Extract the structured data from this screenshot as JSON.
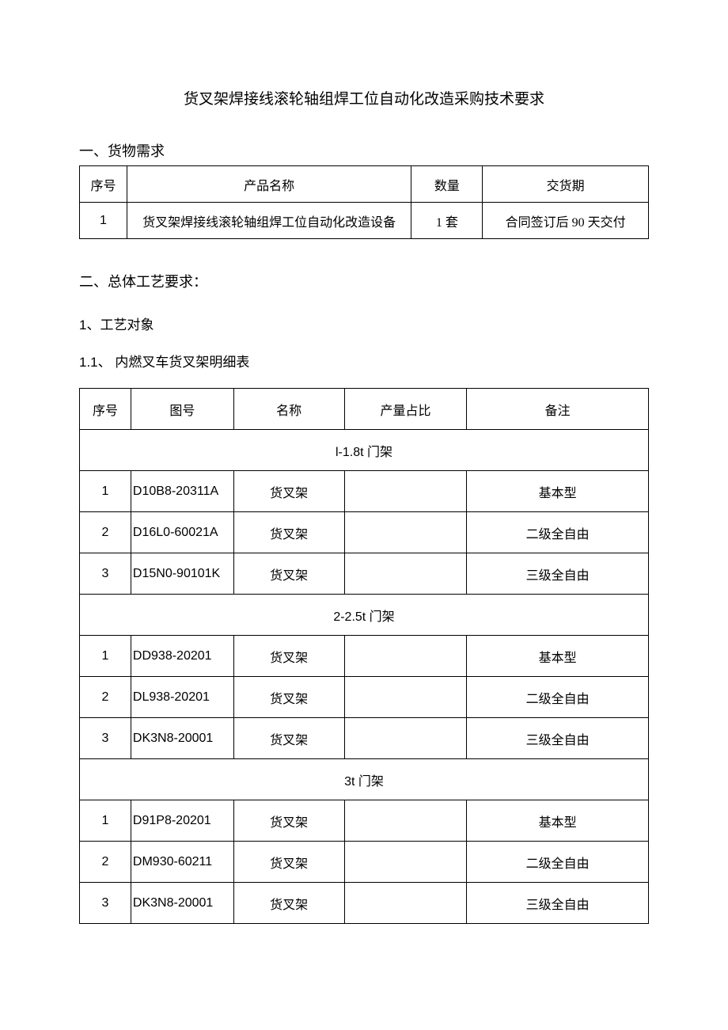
{
  "title": "货叉架焊接线滚轮轴组焊工位自动化改造采购技术要求",
  "section1": {
    "heading": "一、货物需求",
    "columns": [
      "序号",
      "产品名称",
      "数量",
      "交货期"
    ],
    "rows": [
      {
        "seq": "1",
        "name": "货叉架焊接线滚轮轴组焊工位自动化改造设备",
        "qty": "1 套",
        "delivery": "合同签订后 90 天交付"
      }
    ]
  },
  "section2": {
    "heading": "二、总体工艺要求：",
    "sub1": "1、工艺对象",
    "sub11": "1.1、 内燃叉车货叉架明细表",
    "columns": [
      "序号",
      "图号",
      "名称",
      "产量占比",
      "备注"
    ],
    "groups": [
      {
        "label": "l-1.8t 门架",
        "rows": [
          {
            "seq": "1",
            "fig": "D10B8-20311A",
            "name": "货叉架",
            "ratio": "",
            "remark": "基本型"
          },
          {
            "seq": "2",
            "fig": "D16L0-60021A",
            "name": "货叉架",
            "ratio": "",
            "remark": "二级全自由"
          },
          {
            "seq": "3",
            "fig": "D15N0-90101K",
            "name": "货叉架",
            "ratio": "",
            "remark": "三级全自由"
          }
        ]
      },
      {
        "label": "2-2.5t 门架",
        "rows": [
          {
            "seq": "1",
            "fig": "DD938-20201",
            "name": "货叉架",
            "ratio": "",
            "remark": "基本型"
          },
          {
            "seq": "2",
            "fig": "DL938-20201",
            "name": "货叉架",
            "ratio": "",
            "remark": "二级全自由"
          },
          {
            "seq": "3",
            "fig": "DK3N8-20001",
            "name": "货叉架",
            "ratio": "",
            "remark": "三级全自由"
          }
        ]
      },
      {
        "label": "3t 门架",
        "rows": [
          {
            "seq": "1",
            "fig": "D91P8-20201",
            "name": "货叉架",
            "ratio": "",
            "remark": "基本型"
          },
          {
            "seq": "2",
            "fig": "DM930-60211",
            "name": "货叉架",
            "ratio": "",
            "remark": "二级全自由"
          },
          {
            "seq": "3",
            "fig": "DK3N8-20001",
            "name": "货叉架",
            "ratio": "",
            "remark": "三级全自由"
          }
        ]
      }
    ]
  }
}
